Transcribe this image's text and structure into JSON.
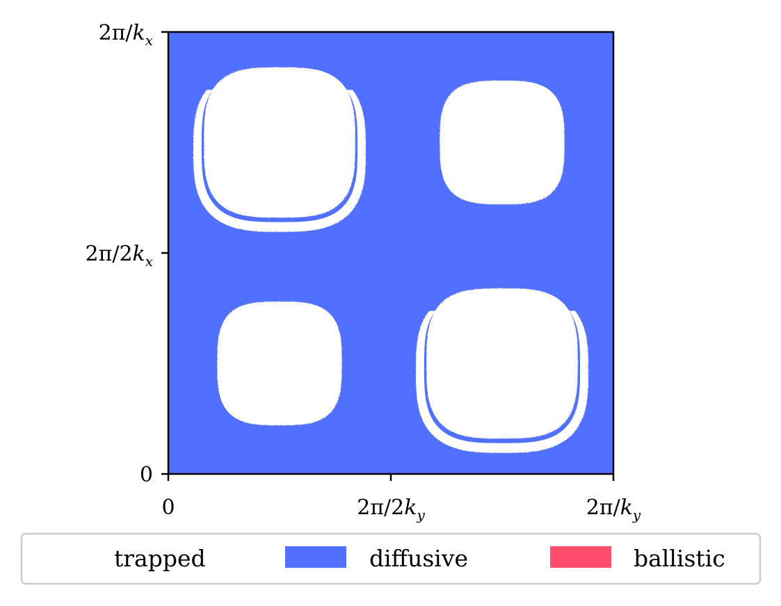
{
  "chart_data": {
    "type": "heatmap",
    "title": "",
    "xlabel": "",
    "ylabel": "",
    "x_ticks": [
      {
        "value": 0,
        "label": "0"
      },
      {
        "value": 0.5,
        "label": "2π/2k_y"
      },
      {
        "value": 1,
        "label": "2π/k_y"
      }
    ],
    "y_ticks": [
      {
        "value": 0,
        "label": "0"
      },
      {
        "value": 0.5,
        "label": "2π/2k_x"
      },
      {
        "value": 1,
        "label": "2π/k_x"
      }
    ],
    "xlim": [
      0,
      1
    ],
    "ylim": [
      0,
      1
    ],
    "categories": [
      "trapped",
      "diffusive",
      "ballistic"
    ],
    "background_category": "diffusive",
    "colors": {
      "trapped": "#ffffff",
      "diffusive": "#5170ff",
      "ballistic": "#ff4d6d"
    },
    "regions": [
      {
        "category": "trapped",
        "shape": "rounded-island",
        "cx": 0.25,
        "cy": 0.75,
        "rx": 0.17,
        "ry": 0.17,
        "with_crescent": true
      },
      {
        "category": "trapped",
        "shape": "rounded-island",
        "cx": 0.75,
        "cy": 0.75,
        "rx": 0.14,
        "ry": 0.14,
        "with_crescent": false
      },
      {
        "category": "trapped",
        "shape": "rounded-island",
        "cx": 0.25,
        "cy": 0.25,
        "rx": 0.14,
        "ry": 0.14,
        "with_crescent": false
      },
      {
        "category": "trapped",
        "shape": "rounded-island",
        "cx": 0.75,
        "cy": 0.25,
        "rx": 0.17,
        "ry": 0.17,
        "with_crescent": true
      }
    ],
    "grid": false,
    "legend_position": "bottom-outside"
  },
  "legend": {
    "items": [
      {
        "label": "trapped",
        "color": "#ffffff"
      },
      {
        "label": "diffusive",
        "color": "#5170ff"
      },
      {
        "label": "ballistic",
        "color": "#ff4d6d"
      }
    ]
  }
}
